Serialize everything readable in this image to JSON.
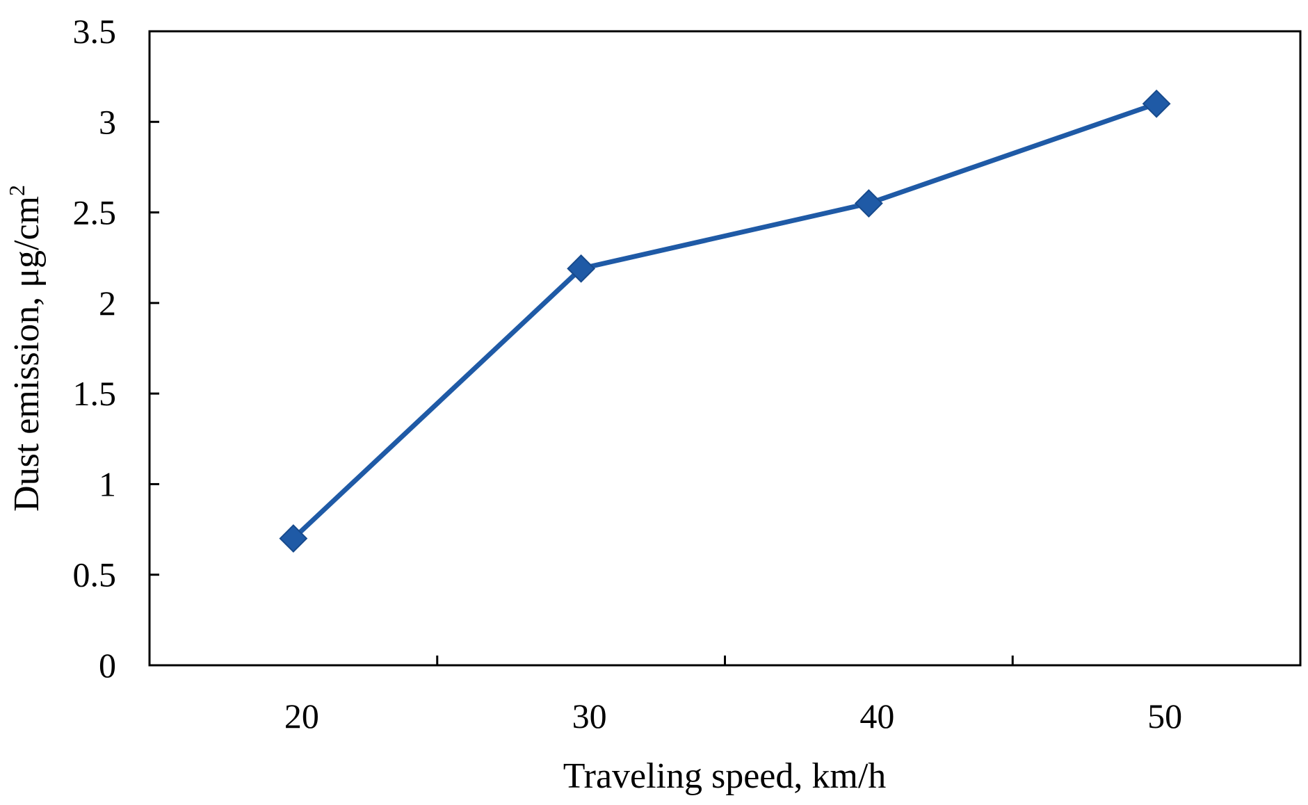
{
  "chart_data": {
    "type": "line",
    "title": "",
    "xlabel": "Traveling speed, km/h",
    "ylabel": "Dust emission, μg/cm",
    "ylabel_superscript": "2",
    "categories": [
      "20",
      "30",
      "40",
      "50"
    ],
    "series": [
      {
        "values": [
          0.7,
          2.19,
          2.55,
          3.1
        ],
        "color": "#1f5aa6",
        "marker": "diamond"
      }
    ],
    "ylim": [
      0,
      3.5
    ],
    "yticks": [
      "0",
      "0.5",
      "1",
      "1.5",
      "2",
      "2.5",
      "3",
      "3.5"
    ],
    "grid": false,
    "legend": "none"
  }
}
